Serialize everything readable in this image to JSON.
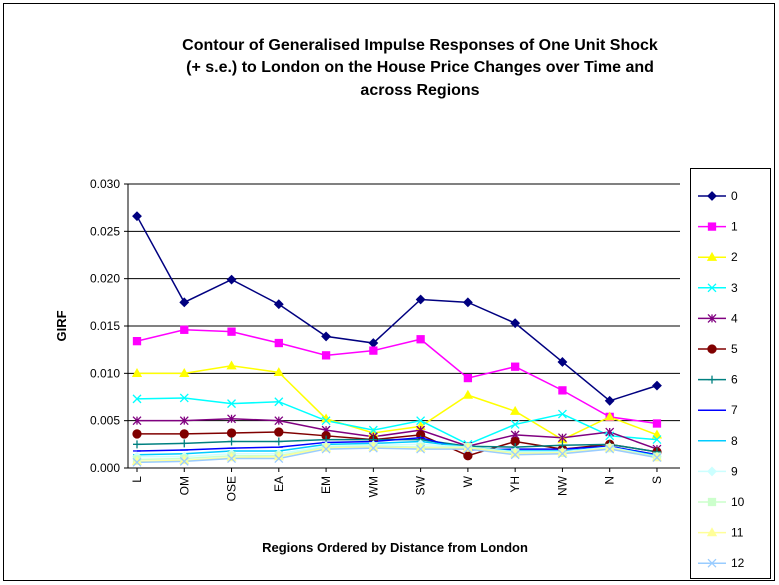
{
  "chart_data": {
    "type": "line",
    "title": [
      "Contour of Generalised Impulse Responses of One Unit Shock",
      "(+ s.e.) to London on the House Price Changes over Time and",
      "across Regions"
    ],
    "x_label": "Regions Ordered by Distance from London",
    "y_label": "GIRF",
    "categories": [
      "L",
      "OM",
      "OSE",
      "EA",
      "EM",
      "WM",
      "SW",
      "W",
      "YH",
      "NW",
      "N",
      "S"
    ],
    "ylim": [
      0,
      0.03
    ],
    "yticks": [
      {
        "value": 0,
        "label": "0.000"
      },
      {
        "value": 0.005,
        "label": "0.005"
      },
      {
        "value": 0.01,
        "label": "0.010"
      },
      {
        "value": 0.015,
        "label": "0.015"
      },
      {
        "value": 0.02,
        "label": "0.020"
      },
      {
        "value": 0.025,
        "label": "0.025"
      },
      {
        "value": 0.03,
        "label": "0.030"
      }
    ],
    "grid": true,
    "legend": "right",
    "series": [
      {
        "name": "0",
        "color": "#000080",
        "marker": "diamond",
        "values": [
          0.0266,
          0.0175,
          0.0199,
          0.0173,
          0.0139,
          0.0132,
          0.0178,
          0.0175,
          0.0153,
          0.0112,
          0.0071,
          0.0087
        ]
      },
      {
        "name": "1",
        "color": "#ff00ff",
        "marker": "square",
        "values": [
          0.0134,
          0.0146,
          0.0144,
          0.0132,
          0.0119,
          0.0124,
          0.0136,
          0.0095,
          0.0107,
          0.0082,
          0.0054,
          0.0047
        ]
      },
      {
        "name": "2",
        "color": "#ffff00",
        "marker": "triangle",
        "values": [
          0.01,
          0.01,
          0.0108,
          0.0101,
          0.0052,
          0.0037,
          0.0044,
          0.0077,
          0.006,
          0.003,
          0.0054,
          0.0035
        ]
      },
      {
        "name": "3",
        "color": "#00ffff",
        "marker": "x",
        "values": [
          0.0073,
          0.0074,
          0.0068,
          0.007,
          0.005,
          0.004,
          0.005,
          0.0025,
          0.0046,
          0.0057,
          0.0034,
          0.003
        ]
      },
      {
        "name": "4",
        "color": "#800080",
        "marker": "star",
        "values": [
          0.005,
          0.005,
          0.0052,
          0.005,
          0.004,
          0.0033,
          0.004,
          0.0023,
          0.0035,
          0.0032,
          0.0038,
          0.002
        ]
      },
      {
        "name": "5",
        "color": "#800000",
        "marker": "circle",
        "values": [
          0.0036,
          0.0036,
          0.0037,
          0.0038,
          0.0034,
          0.003,
          0.0035,
          0.0013,
          0.0028,
          0.002,
          0.0025,
          0.0017
        ]
      },
      {
        "name": "6",
        "color": "#008080",
        "marker": "plus",
        "values": [
          0.0025,
          0.0026,
          0.0028,
          0.0028,
          0.003,
          0.003,
          0.003,
          0.0023,
          0.0022,
          0.0024,
          0.0025,
          0.0017
        ]
      },
      {
        "name": "7",
        "color": "#0000ff",
        "marker": "dash",
        "values": [
          0.0018,
          0.0019,
          0.0021,
          0.0022,
          0.0027,
          0.0028,
          0.0032,
          0.0019,
          0.002,
          0.002,
          0.0023,
          0.0014
        ]
      },
      {
        "name": "8",
        "color": "#00ccff",
        "marker": "dash",
        "values": [
          0.0014,
          0.0015,
          0.0018,
          0.0018,
          0.0025,
          0.0026,
          0.0028,
          0.0022,
          0.0018,
          0.0018,
          0.0022,
          0.0013
        ]
      },
      {
        "name": "9",
        "color": "#ccffff",
        "marker": "diamond",
        "values": [
          0.0012,
          0.0012,
          0.0015,
          0.0015,
          0.0023,
          0.0024,
          0.0025,
          0.0022,
          0.0017,
          0.0017,
          0.0022,
          0.0012
        ]
      },
      {
        "name": "10",
        "color": "#ccffcc",
        "marker": "square",
        "values": [
          0.0009,
          0.001,
          0.0013,
          0.0013,
          0.0022,
          0.0023,
          0.0022,
          0.0022,
          0.0016,
          0.0016,
          0.0021,
          0.0012
        ]
      },
      {
        "name": "11",
        "color": "#ffff99",
        "marker": "triangle",
        "values": [
          0.0007,
          0.0008,
          0.0011,
          0.0012,
          0.0021,
          0.0022,
          0.0021,
          0.0021,
          0.0015,
          0.0016,
          0.0021,
          0.0011
        ]
      },
      {
        "name": "12",
        "color": "#99ccff",
        "marker": "x",
        "values": [
          0.0006,
          0.0007,
          0.001,
          0.001,
          0.002,
          0.0021,
          0.002,
          0.002,
          0.0014,
          0.0015,
          0.002,
          0.0011
        ]
      }
    ]
  }
}
